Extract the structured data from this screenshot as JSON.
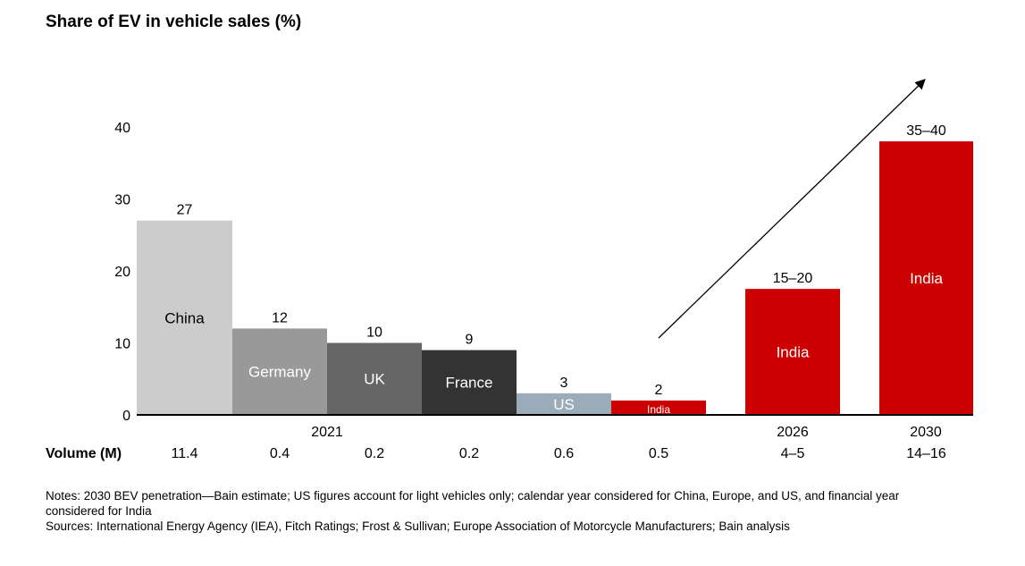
{
  "chart_data": {
    "type": "bar",
    "title": "Share of EV in vehicle sales (%)",
    "ylabel": "",
    "xlabel": "",
    "ylim": [
      0,
      40
    ],
    "yticks": [
      0,
      10,
      20,
      30,
      40
    ],
    "volume_label": "Volume (M)",
    "bars": [
      {
        "label": "China",
        "value": 27,
        "value_label": "27",
        "group": "2021",
        "volume": "11.4",
        "color": "#cccccc",
        "text_color": "#000000"
      },
      {
        "label": "Germany",
        "value": 12,
        "value_label": "12",
        "group": "2021",
        "volume": "0.4",
        "color": "#999999",
        "text_color": "#ffffff"
      },
      {
        "label": "UK",
        "value": 10,
        "value_label": "10",
        "group": "2021",
        "volume": "0.2",
        "color": "#666666",
        "text_color": "#ffffff"
      },
      {
        "label": "France",
        "value": 9,
        "value_label": "9",
        "group": "2021",
        "volume": "0.2",
        "color": "#333333",
        "text_color": "#ffffff"
      },
      {
        "label": "US",
        "value": 3,
        "value_label": "3",
        "group": "2021",
        "volume": "0.6",
        "color": "#9aabba",
        "text_color": "#ffffff"
      },
      {
        "label": "India",
        "value": 2,
        "value_label": "2",
        "group": "2021",
        "volume": "0.5",
        "color": "#cc0000",
        "text_color": "#ffffff"
      },
      {
        "label": "India",
        "value": 17.5,
        "value_label": "15–20",
        "group": "2026",
        "volume": "4–5",
        "color": "#cc0000",
        "text_color": "#ffffff"
      },
      {
        "label": "India",
        "value": 38,
        "value_label": "35–40",
        "group": "2030",
        "volume": "14–16",
        "color": "#cc0000",
        "text_color": "#ffffff"
      }
    ],
    "groups": [
      "2021",
      "2026",
      "2030"
    ],
    "grid": false,
    "annotations": [
      "trend arrow rising toward 2030"
    ]
  },
  "notes": {
    "line1": "Notes: 2030 BEV penetration—Bain estimate; US figures account for light vehicles only; calendar year considered for China, Europe, and US, and financial year considered for India",
    "line2": "Sources: International Energy Agency (IEA), Fitch Ratings; Frost & Sullivan; Europe Association of Motorcycle Manufacturers; Bain analysis"
  }
}
